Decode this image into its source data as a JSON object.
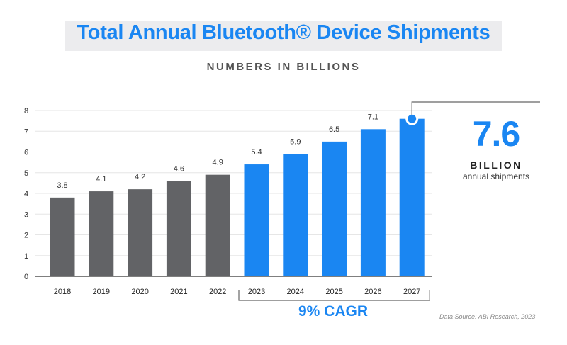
{
  "chart_data": {
    "type": "bar",
    "title": "Total Annual Bluetooth® Device Shipments",
    "subtitle": "NUMBERS IN BILLIONS",
    "categories": [
      "2018",
      "2019",
      "2020",
      "2021",
      "2022",
      "2023",
      "2024",
      "2025",
      "2026",
      "2027"
    ],
    "values": [
      3.8,
      4.1,
      4.2,
      4.6,
      4.9,
      5.4,
      5.9,
      6.5,
      7.1,
      7.6
    ],
    "data_labels": [
      "3.8",
      "4.1",
      "4.2",
      "4.6",
      "4.9",
      "5.4",
      "5.9",
      "6.5",
      "7.1",
      ""
    ],
    "ylim": [
      0,
      8
    ],
    "yticks": [
      "0",
      "1",
      "2",
      "3",
      "4",
      "5",
      "6",
      "7",
      "8"
    ],
    "grid": true,
    "colors": {
      "historical": "#626366",
      "forecast": "#1a86f2"
    },
    "callout": {
      "value": "7.6",
      "unit": "BILLION",
      "label": "annual shipments"
    },
    "bracket_label": "9% CAGR",
    "source": "Data Source: ABI Research, 2023"
  }
}
